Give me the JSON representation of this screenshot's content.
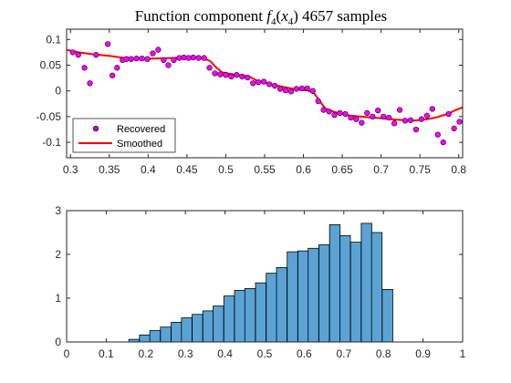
{
  "chart_data": [
    {
      "type": "scatter",
      "title": {
        "prefix": "Function component ",
        "func": "f",
        "func_sub": "4",
        "arg": "x",
        "arg_sub": "4",
        "suffix": " 4657 samples"
      },
      "xlabel": "",
      "ylabel": "",
      "xlim": [
        0.295,
        0.805
      ],
      "ylim": [
        -0.13,
        0.12
      ],
      "xticks": [
        "0.3",
        "0.35",
        "0.4",
        "0.45",
        "0.5",
        "0.55",
        "0.6",
        "0.65",
        "0.7",
        "0.75",
        "0.8"
      ],
      "yticks": [
        "0.1",
        "0.05",
        "0",
        "-0.05",
        "-0.1"
      ],
      "legend": {
        "position": "bottom-left"
      },
      "series": [
        {
          "name": "Recovered",
          "kind": "markers",
          "color": "#ff00ff",
          "points": [
            [
              0.303,
              0.075
            ],
            [
              0.31,
              0.07
            ],
            [
              0.318,
              0.045
            ],
            [
              0.325,
              0.015
            ],
            [
              0.333,
              0.07
            ],
            [
              0.348,
              0.091
            ],
            [
              0.354,
              0.03
            ],
            [
              0.36,
              0.045
            ],
            [
              0.367,
              0.06
            ],
            [
              0.372,
              0.062
            ],
            [
              0.378,
              0.062
            ],
            [
              0.385,
              0.063
            ],
            [
              0.392,
              0.063
            ],
            [
              0.399,
              0.062
            ],
            [
              0.406,
              0.073
            ],
            [
              0.413,
              0.08
            ],
            [
              0.42,
              0.06
            ],
            [
              0.426,
              0.05
            ],
            [
              0.433,
              0.06
            ],
            [
              0.44,
              0.064
            ],
            [
              0.446,
              0.065
            ],
            [
              0.452,
              0.064
            ],
            [
              0.458,
              0.065
            ],
            [
              0.465,
              0.064
            ],
            [
              0.472,
              0.064
            ],
            [
              0.479,
              0.045
            ],
            [
              0.486,
              0.034
            ],
            [
              0.493,
              0.032
            ],
            [
              0.5,
              0.031
            ],
            [
              0.507,
              0.028
            ],
            [
              0.514,
              0.031
            ],
            [
              0.521,
              0.028
            ],
            [
              0.528,
              0.026
            ],
            [
              0.535,
              0.015
            ],
            [
              0.542,
              0.017
            ],
            [
              0.549,
              0.018
            ],
            [
              0.556,
              0.013
            ],
            [
              0.563,
              0.01
            ],
            [
              0.57,
              0.004
            ],
            [
              0.577,
              0.001
            ],
            [
              0.584,
              -0.001
            ],
            [
              0.591,
              0.004
            ],
            [
              0.598,
              0.005
            ],
            [
              0.605,
              0.005
            ],
            [
              0.612,
              0.0
            ],
            [
              0.619,
              -0.02
            ],
            [
              0.626,
              -0.037
            ],
            [
              0.633,
              -0.04
            ],
            [
              0.64,
              -0.047
            ],
            [
              0.647,
              -0.043
            ],
            [
              0.654,
              -0.045
            ],
            [
              0.661,
              -0.052
            ],
            [
              0.668,
              -0.055
            ],
            [
              0.675,
              -0.062
            ],
            [
              0.682,
              -0.043
            ],
            [
              0.689,
              -0.05
            ],
            [
              0.696,
              -0.038
            ],
            [
              0.703,
              -0.05
            ],
            [
              0.71,
              -0.052
            ],
            [
              0.717,
              -0.063
            ],
            [
              0.724,
              -0.037
            ],
            [
              0.731,
              -0.058
            ],
            [
              0.738,
              -0.057
            ],
            [
              0.745,
              -0.075
            ],
            [
              0.752,
              -0.055
            ],
            [
              0.759,
              -0.048
            ],
            [
              0.766,
              -0.035
            ],
            [
              0.773,
              -0.085
            ],
            [
              0.78,
              -0.1
            ],
            [
              0.787,
              -0.045
            ],
            [
              0.794,
              -0.073
            ],
            [
              0.801,
              -0.06
            ]
          ]
        },
        {
          "name": "Smoothed",
          "kind": "line",
          "color": "#ff0000",
          "points": [
            [
              0.295,
              0.08
            ],
            [
              0.31,
              0.075
            ],
            [
              0.33,
              0.071
            ],
            [
              0.35,
              0.068
            ],
            [
              0.37,
              0.064
            ],
            [
              0.39,
              0.062
            ],
            [
              0.41,
              0.063
            ],
            [
              0.43,
              0.064
            ],
            [
              0.45,
              0.065
            ],
            [
              0.47,
              0.064
            ],
            [
              0.48,
              0.058
            ],
            [
              0.488,
              0.045
            ],
            [
              0.495,
              0.036
            ],
            [
              0.51,
              0.032
            ],
            [
              0.53,
              0.028
            ],
            [
              0.54,
              0.02
            ],
            [
              0.55,
              0.016
            ],
            [
              0.57,
              0.009
            ],
            [
              0.59,
              0.003
            ],
            [
              0.605,
              0.001
            ],
            [
              0.614,
              -0.005
            ],
            [
              0.62,
              -0.018
            ],
            [
              0.628,
              -0.034
            ],
            [
              0.64,
              -0.041
            ],
            [
              0.66,
              -0.048
            ],
            [
              0.68,
              -0.051
            ],
            [
              0.7,
              -0.053
            ],
            [
              0.72,
              -0.056
            ],
            [
              0.74,
              -0.058
            ],
            [
              0.755,
              -0.056
            ],
            [
              0.77,
              -0.052
            ],
            [
              0.785,
              -0.045
            ],
            [
              0.795,
              -0.038
            ],
            [
              0.805,
              -0.032
            ]
          ]
        }
      ]
    },
    {
      "type": "bar",
      "subtype": "histogram",
      "title": "",
      "xlabel": "",
      "ylabel": "",
      "xlim": [
        0,
        1
      ],
      "ylim": [
        0,
        3
      ],
      "xticks": [
        "0",
        "0.1",
        "0.2",
        "0.3",
        "0.4",
        "0.5",
        "0.6",
        "0.7",
        "0.8",
        "0.9",
        "1"
      ],
      "yticks": [
        "0",
        "1",
        "2",
        "3"
      ],
      "bar_color": "#5ba3d4",
      "bin_width": 0.0266,
      "bins": [
        [
          0.157,
          0.06
        ],
        [
          0.184,
          0.16
        ],
        [
          0.21,
          0.26
        ],
        [
          0.237,
          0.34
        ],
        [
          0.264,
          0.45
        ],
        [
          0.29,
          0.55
        ],
        [
          0.317,
          0.63
        ],
        [
          0.344,
          0.71
        ],
        [
          0.37,
          0.82
        ],
        [
          0.397,
          1.05
        ],
        [
          0.424,
          1.18
        ],
        [
          0.45,
          1.22
        ],
        [
          0.477,
          1.35
        ],
        [
          0.504,
          1.57
        ],
        [
          0.53,
          1.7
        ],
        [
          0.557,
          2.06
        ],
        [
          0.584,
          2.08
        ],
        [
          0.61,
          2.14
        ],
        [
          0.637,
          2.22
        ],
        [
          0.664,
          2.68
        ],
        [
          0.69,
          2.43
        ],
        [
          0.717,
          2.28
        ],
        [
          0.744,
          2.71
        ],
        [
          0.77,
          2.5
        ],
        [
          0.797,
          1.2
        ]
      ]
    }
  ]
}
